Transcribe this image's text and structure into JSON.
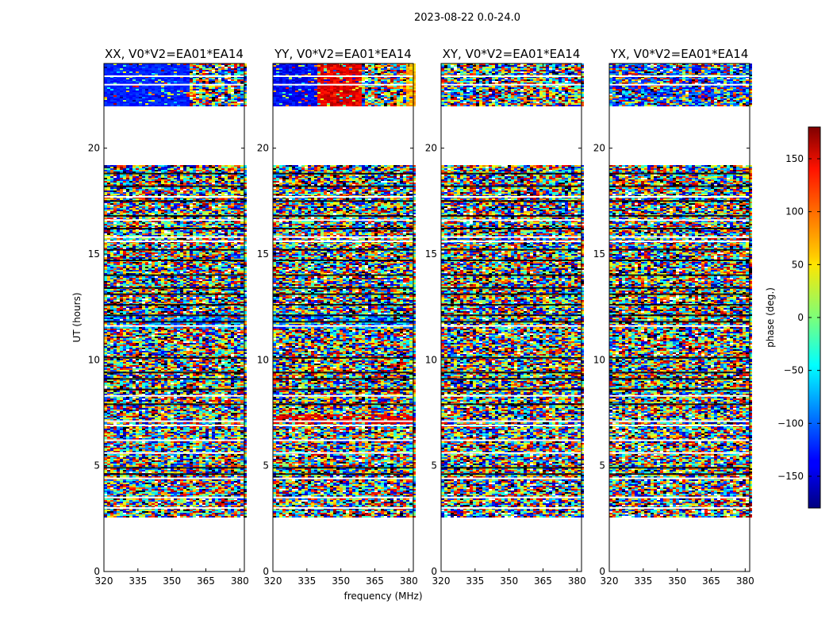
{
  "chart_data": {
    "type": "heatmap",
    "suptitle": "2023-08-22 0.0-24.0",
    "xlabel": "frequency (MHz)",
    "ylabel": "UT (hours)",
    "colorbar_label": "phase (deg.)",
    "colorbar_range": [
      -180,
      180
    ],
    "colorbar_ticks": [
      150,
      100,
      50,
      0,
      -50,
      -100,
      -150
    ],
    "colormap": "jet",
    "xlim": [
      320,
      382
    ],
    "ylim": [
      0,
      24
    ],
    "x_ticks": [
      320,
      335,
      350,
      365,
      380
    ],
    "y_ticks": [
      0,
      5,
      10,
      15,
      20
    ],
    "data_coverage_hours": [
      [
        2.6,
        19.2
      ],
      [
        22.0,
        24.0
      ]
    ],
    "panels": [
      {
        "title": "XX, V0*V2=EA01*EA14",
        "pol": "XX"
      },
      {
        "title": "YY, V0*V2=EA01*EA14",
        "pol": "YY"
      },
      {
        "title": "XY, V0*V2=EA01*EA14",
        "pol": "XY"
      },
      {
        "title": "YX, V0*V2=EA01*EA14",
        "pol": "YX"
      }
    ]
  }
}
